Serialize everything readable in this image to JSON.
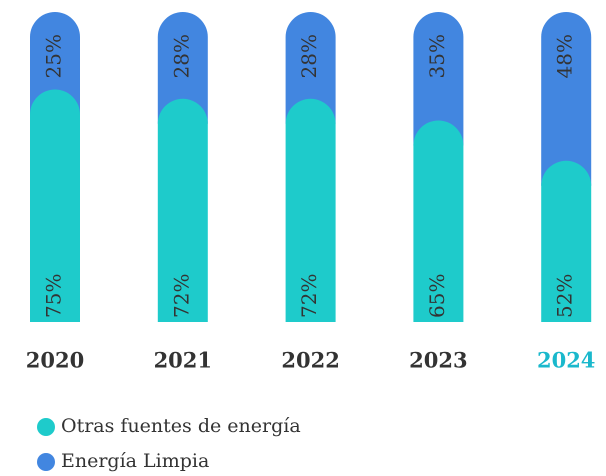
{
  "chart_data": {
    "type": "stacked_bar",
    "categories": [
      "2020",
      "2021",
      "2022",
      "2023",
      "2024"
    ],
    "category_colors": [
      "#333333",
      "#333333",
      "#333333",
      "#333333",
      "#1ab8cc"
    ],
    "series": [
      {
        "name": "Otras fuentes de energía",
        "color": "#1ecbcb",
        "values": [
          75,
          72,
          72,
          65,
          52
        ],
        "value_labels": [
          "75%",
          "72%",
          "72%",
          "65%",
          "52%"
        ]
      },
      {
        "name": "Energía Limpia",
        "color": "#4286e0",
        "values": [
          25,
          28,
          28,
          35,
          48
        ],
        "value_labels": [
          "25%",
          "28%",
          "28%",
          "35%",
          "48%"
        ]
      }
    ],
    "ylim": [
      0,
      100
    ]
  }
}
